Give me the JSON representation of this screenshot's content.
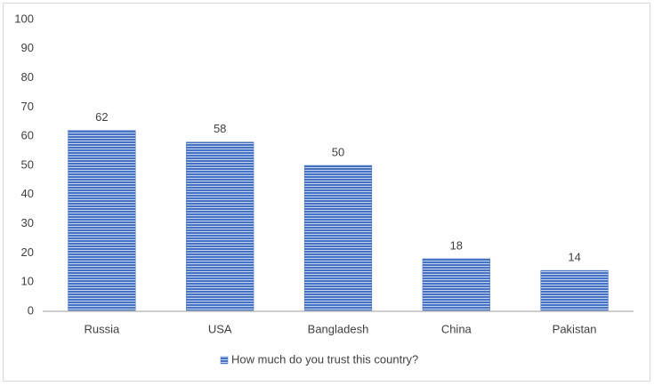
{
  "chart_data": {
    "type": "bar",
    "categories": [
      "Russia",
      "USA",
      "Bangladesh",
      "China",
      "Pakistan"
    ],
    "series": [
      {
        "name": "How much do you trust this country?",
        "color": "#4472c4",
        "values": [
          62,
          58,
          50,
          18,
          14
        ]
      }
    ],
    "ylim": [
      0,
      100
    ],
    "yticks": [
      0,
      10,
      20,
      30,
      40,
      50,
      60,
      70,
      80,
      90,
      100
    ],
    "grid": false,
    "legend": "bottom",
    "data_labels": true
  }
}
